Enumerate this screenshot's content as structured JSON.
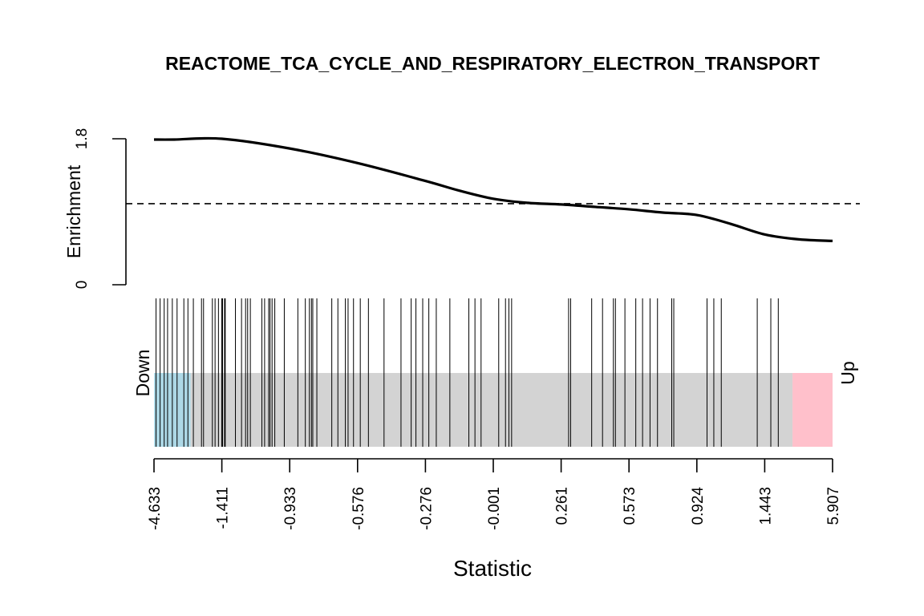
{
  "chart_data": {
    "type": "line",
    "title": "REACTOME_TCA_CYCLE_AND_RESPIRATORY_ELECTRON_TRANSPORT",
    "xlabel": "Statistic",
    "ylabel": "Enrichment",
    "down_label": "Down",
    "up_label": "Up",
    "ylim": [
      0,
      1.8
    ],
    "y_ticks": [
      "0",
      "1.8"
    ],
    "reference_line": 1.0,
    "x_ticks": [
      "-4.633",
      "-1.411",
      "-0.933",
      "-0.576",
      "-0.276",
      "-0.001",
      "0.261",
      "0.573",
      "0.924",
      "1.443",
      "5.907"
    ],
    "enrichment_curve": {
      "x": [
        0,
        0.03,
        0.1,
        0.2,
        0.3,
        0.4,
        0.45,
        0.5,
        0.55,
        0.6,
        0.65,
        0.7,
        0.75,
        0.8,
        0.85,
        0.9,
        0.95,
        1.0
      ],
      "y": [
        1.79,
        1.79,
        1.8,
        1.68,
        1.5,
        1.28,
        1.16,
        1.06,
        1.01,
        0.99,
        0.96,
        0.93,
        0.89,
        0.86,
        0.75,
        0.62,
        0.56,
        0.54
      ]
    },
    "gene_positions": [
      0.003,
      0.009,
      0.015,
      0.02,
      0.027,
      0.034,
      0.044,
      0.05,
      0.058,
      0.07,
      0.073,
      0.086,
      0.09,
      0.095,
      0.1,
      0.1,
      0.101,
      0.104,
      0.105,
      0.12,
      0.129,
      0.135,
      0.138,
      0.142,
      0.159,
      0.163,
      0.169,
      0.171,
      0.174,
      0.178,
      0.192,
      0.212,
      0.223,
      0.229,
      0.232,
      0.234,
      0.24,
      0.262,
      0.271,
      0.282,
      0.286,
      0.294,
      0.304,
      0.316,
      0.339,
      0.364,
      0.379,
      0.386,
      0.396,
      0.405,
      0.416,
      0.436,
      0.464,
      0.473,
      0.482,
      0.508,
      0.518,
      0.523,
      0.527,
      0.611,
      0.614,
      0.645,
      0.661,
      0.677,
      0.68,
      0.694,
      0.71,
      0.72,
      0.731,
      0.742,
      0.763,
      0.766,
      0.815,
      0.825,
      0.836,
      0.889,
      0.909,
      0.92
    ],
    "regions": [
      {
        "from": 0,
        "to": 0.054,
        "color": "#add8e6"
      },
      {
        "from": 0.054,
        "to": 0.941,
        "color": "#d3d3d3"
      },
      {
        "from": 0.941,
        "to": 1,
        "color": "#ffc0cb"
      }
    ]
  }
}
